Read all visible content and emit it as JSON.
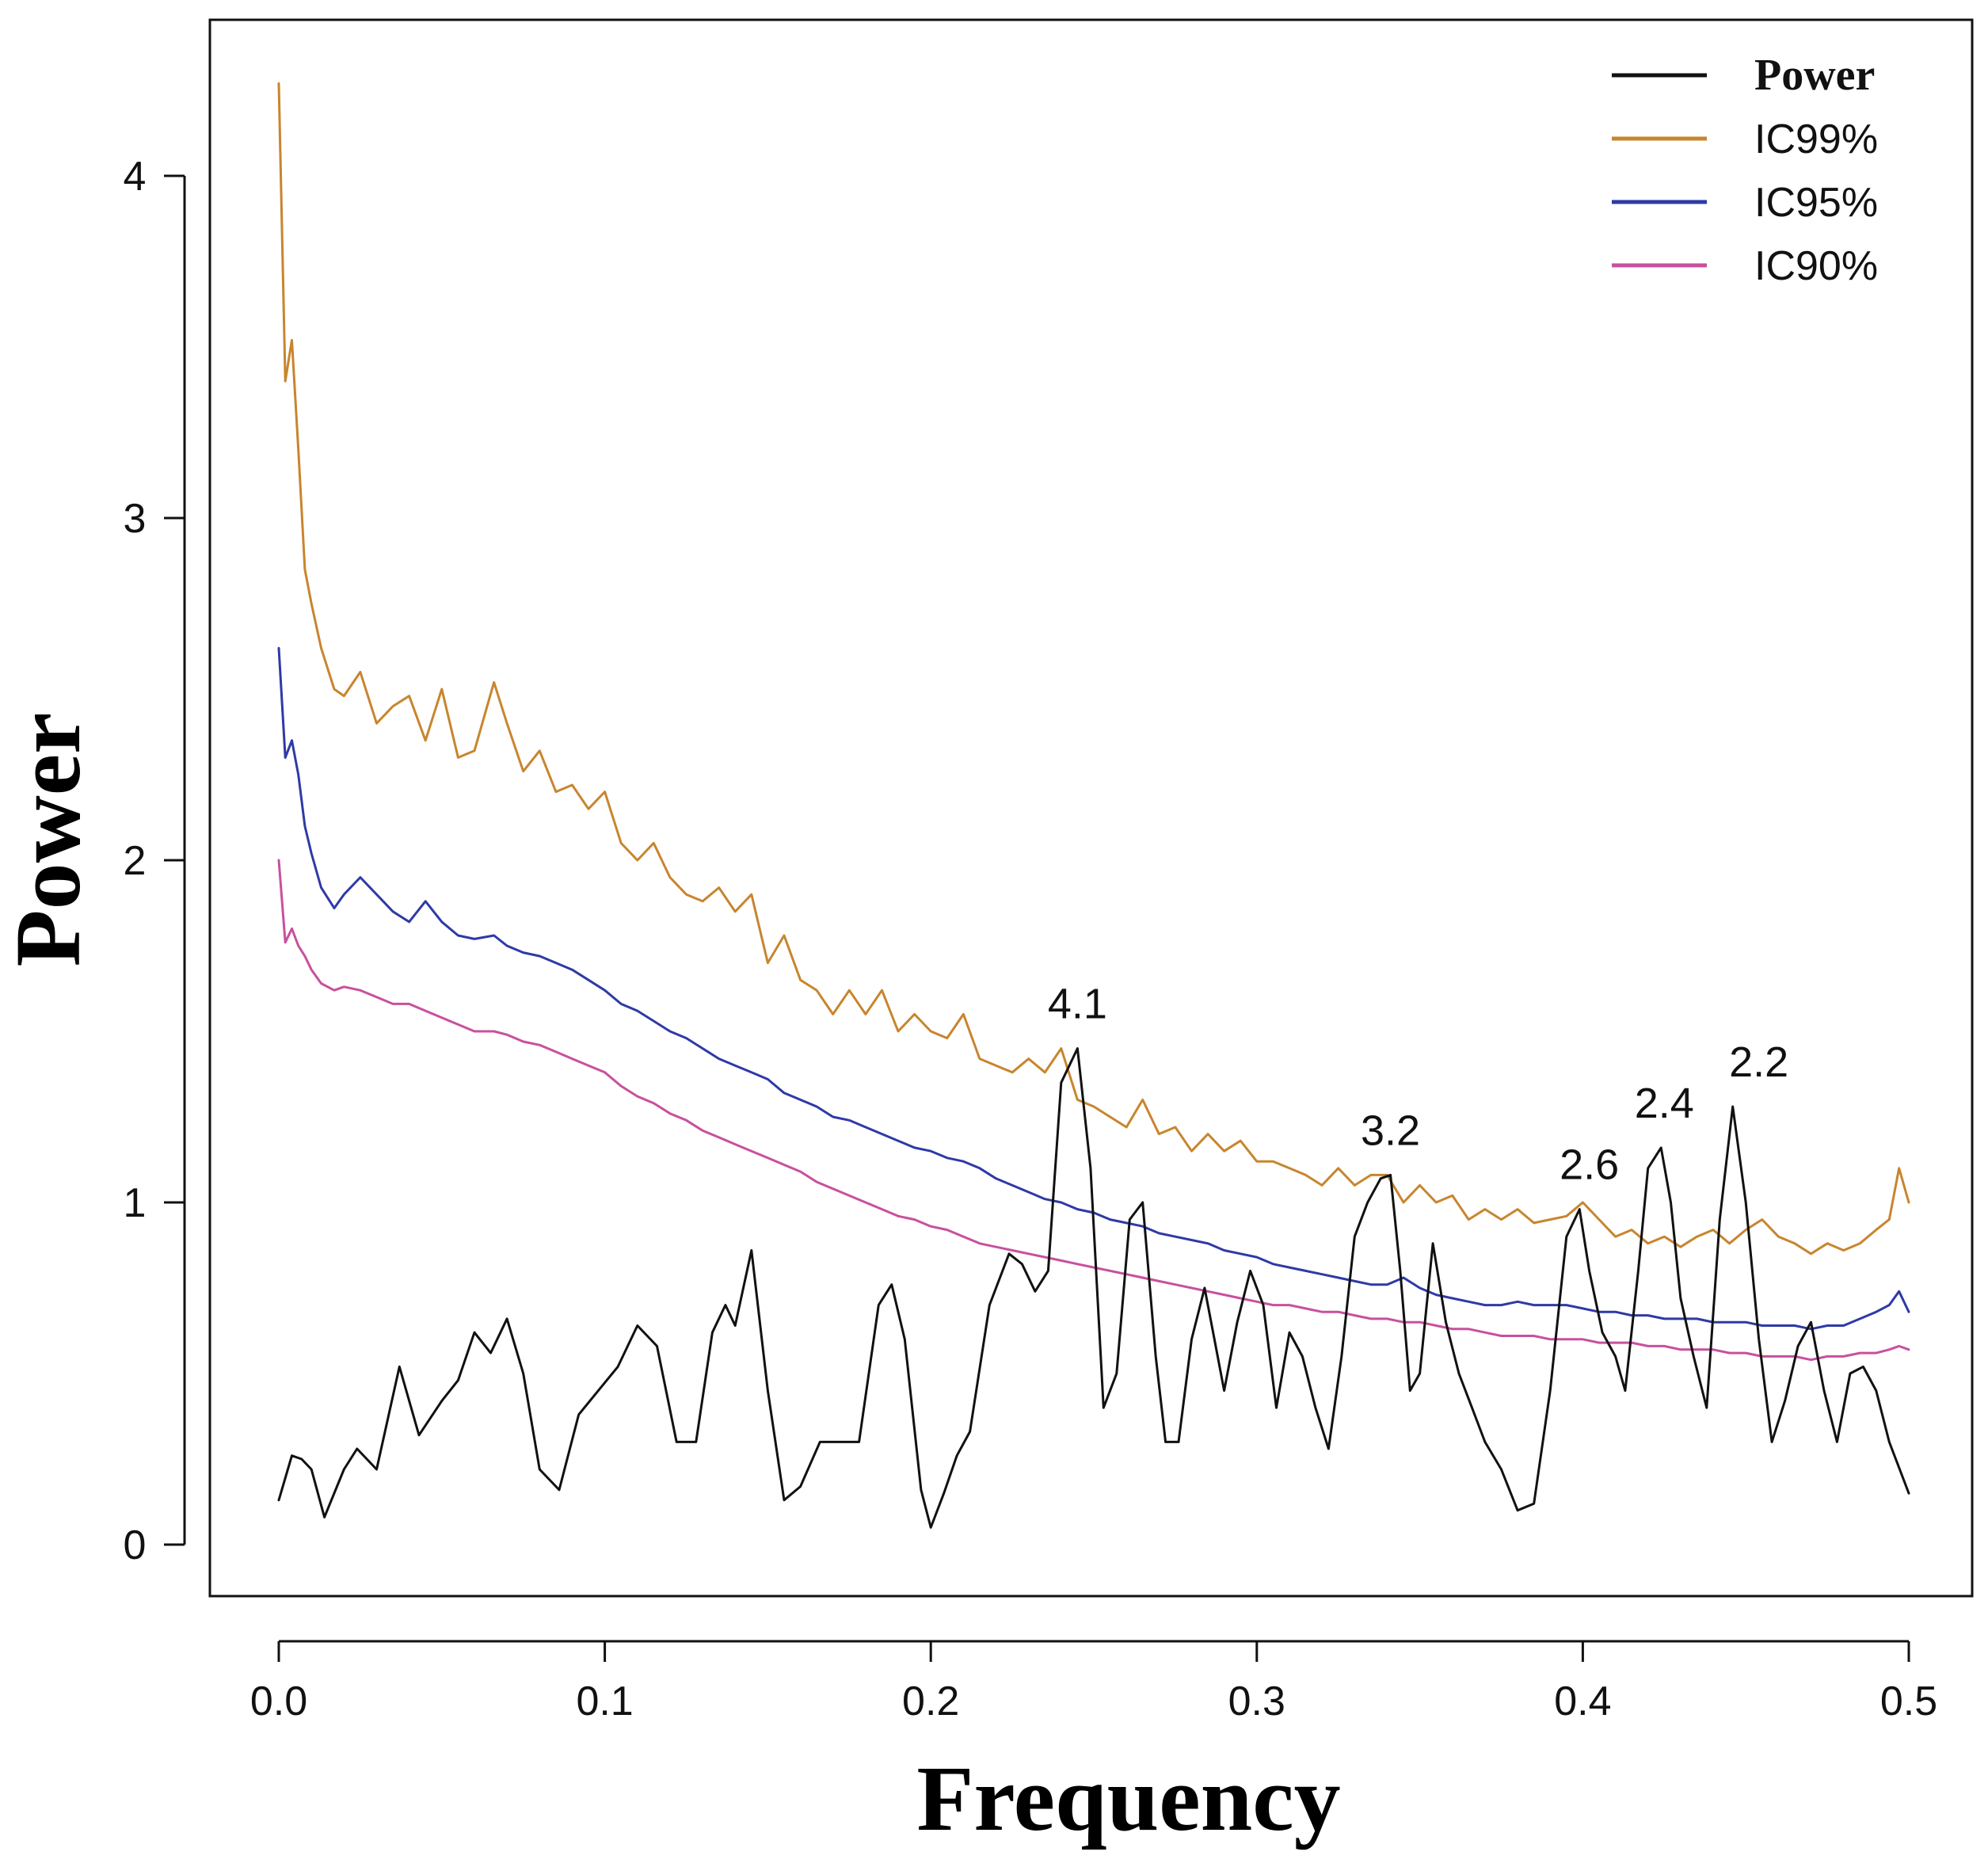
{
  "chart_data": {
    "type": "line",
    "title": "",
    "xlabel": "Frequency",
    "ylabel": "Power",
    "xlim": [
      0.0,
      0.5
    ],
    "ylim": [
      0,
      4.3
    ],
    "x_ticks": [
      "0.0",
      "0.1",
      "0.2",
      "0.3",
      "0.4",
      "0.5"
    ],
    "y_ticks": [
      "0",
      "1",
      "2",
      "3",
      "4"
    ],
    "grid": false,
    "legend_position": "top-right",
    "series": [
      {
        "name": "Power",
        "color": "#111111",
        "x": [
          0.0,
          0.004,
          0.007,
          0.01,
          0.014,
          0.02,
          0.024,
          0.03,
          0.037,
          0.043,
          0.05,
          0.055,
          0.06,
          0.065,
          0.07,
          0.075,
          0.08,
          0.086,
          0.092,
          0.098,
          0.104,
          0.11,
          0.116,
          0.122,
          0.128,
          0.133,
          0.137,
          0.14,
          0.145,
          0.15,
          0.155,
          0.16,
          0.166,
          0.172,
          0.178,
          0.184,
          0.188,
          0.192,
          0.197,
          0.2,
          0.204,
          0.208,
          0.212,
          0.218,
          0.224,
          0.228,
          0.232,
          0.236,
          0.24,
          0.245,
          0.249,
          0.253,
          0.257,
          0.261,
          0.265,
          0.269,
          0.272,
          0.276,
          0.28,
          0.284,
          0.287,
          0.29,
          0.294,
          0.298,
          0.302,
          0.306,
          0.31,
          0.314,
          0.318,
          0.322,
          0.326,
          0.33,
          0.334,
          0.338,
          0.341,
          0.344,
          0.347,
          0.35,
          0.354,
          0.358,
          0.362,
          0.366,
          0.37,
          0.375,
          0.38,
          0.385,
          0.39,
          0.395,
          0.399,
          0.402,
          0.406,
          0.41,
          0.413,
          0.417,
          0.42,
          0.424,
          0.427,
          0.43,
          0.434,
          0.438,
          0.442,
          0.446,
          0.45,
          0.454,
          0.458,
          0.462,
          0.466,
          0.47,
          0.474,
          0.478,
          0.482,
          0.486,
          0.49,
          0.494,
          0.498,
          0.5
        ],
        "values": [
          0.13,
          0.26,
          0.25,
          0.22,
          0.08,
          0.22,
          0.28,
          0.22,
          0.52,
          0.32,
          0.42,
          0.48,
          0.62,
          0.56,
          0.66,
          0.5,
          0.22,
          0.16,
          0.38,
          0.45,
          0.52,
          0.64,
          0.58,
          0.3,
          0.3,
          0.62,
          0.7,
          0.64,
          0.86,
          0.45,
          0.13,
          0.17,
          0.3,
          0.3,
          0.3,
          0.7,
          0.76,
          0.6,
          0.16,
          0.05,
          0.15,
          0.26,
          0.33,
          0.7,
          0.85,
          0.82,
          0.74,
          0.8,
          1.35,
          1.45,
          1.1,
          0.4,
          0.5,
          0.95,
          1.0,
          0.55,
          0.3,
          0.3,
          0.6,
          0.75,
          0.6,
          0.45,
          0.65,
          0.8,
          0.7,
          0.4,
          0.62,
          0.55,
          0.4,
          0.28,
          0.55,
          0.9,
          1.0,
          1.07,
          1.08,
          0.8,
          0.45,
          0.5,
          0.88,
          0.65,
          0.5,
          0.4,
          0.3,
          0.22,
          0.1,
          0.12,
          0.45,
          0.9,
          0.98,
          0.8,
          0.62,
          0.55,
          0.45,
          0.8,
          1.1,
          1.16,
          1.0,
          0.72,
          0.55,
          0.4,
          0.95,
          1.28,
          1.0,
          0.6,
          0.3,
          0.42,
          0.58,
          0.65,
          0.45,
          0.3,
          0.5,
          0.52,
          0.45,
          0.3,
          0.2,
          0.15
        ]
      },
      {
        "name": "IC99%",
        "color": "#C8852E",
        "x": [
          0.0,
          0.002,
          0.004,
          0.006,
          0.008,
          0.01,
          0.013,
          0.017,
          0.02,
          0.025,
          0.03,
          0.035,
          0.04,
          0.045,
          0.05,
          0.055,
          0.06,
          0.066,
          0.07,
          0.075,
          0.08,
          0.085,
          0.09,
          0.095,
          0.1,
          0.105,
          0.11,
          0.115,
          0.12,
          0.125,
          0.13,
          0.135,
          0.14,
          0.145,
          0.15,
          0.155,
          0.16,
          0.165,
          0.17,
          0.175,
          0.18,
          0.185,
          0.19,
          0.195,
          0.2,
          0.205,
          0.21,
          0.215,
          0.22,
          0.225,
          0.23,
          0.235,
          0.24,
          0.245,
          0.25,
          0.255,
          0.26,
          0.265,
          0.27,
          0.275,
          0.28,
          0.285,
          0.29,
          0.295,
          0.3,
          0.305,
          0.31,
          0.315,
          0.32,
          0.325,
          0.33,
          0.335,
          0.34,
          0.345,
          0.35,
          0.355,
          0.36,
          0.365,
          0.37,
          0.375,
          0.38,
          0.385,
          0.39,
          0.395,
          0.4,
          0.405,
          0.41,
          0.415,
          0.42,
          0.425,
          0.43,
          0.435,
          0.44,
          0.445,
          0.45,
          0.455,
          0.46,
          0.465,
          0.47,
          0.475,
          0.48,
          0.485,
          0.49,
          0.494,
          0.497,
          0.5
        ],
        "values": [
          4.27,
          3.4,
          3.52,
          3.2,
          2.85,
          2.75,
          2.62,
          2.5,
          2.48,
          2.55,
          2.4,
          2.45,
          2.48,
          2.35,
          2.5,
          2.3,
          2.32,
          2.52,
          2.4,
          2.26,
          2.32,
          2.2,
          2.22,
          2.15,
          2.2,
          2.05,
          2.0,
          2.05,
          1.95,
          1.9,
          1.88,
          1.92,
          1.85,
          1.9,
          1.7,
          1.78,
          1.65,
          1.62,
          1.55,
          1.62,
          1.55,
          1.62,
          1.5,
          1.55,
          1.5,
          1.48,
          1.55,
          1.42,
          1.4,
          1.38,
          1.42,
          1.38,
          1.45,
          1.3,
          1.28,
          1.25,
          1.22,
          1.3,
          1.2,
          1.22,
          1.15,
          1.2,
          1.15,
          1.18,
          1.12,
          1.12,
          1.1,
          1.08,
          1.05,
          1.1,
          1.05,
          1.08,
          1.08,
          1.0,
          1.05,
          1.0,
          1.02,
          0.95,
          0.98,
          0.95,
          0.98,
          0.94,
          0.95,
          0.96,
          1.0,
          0.95,
          0.9,
          0.92,
          0.88,
          0.9,
          0.87,
          0.9,
          0.92,
          0.88,
          0.92,
          0.95,
          0.9,
          0.88,
          0.85,
          0.88,
          0.86,
          0.88,
          0.92,
          0.95,
          1.1,
          1.0
        ]
      },
      {
        "name": "IC95%",
        "color": "#2E3AA6",
        "x": [
          0.0,
          0.002,
          0.004,
          0.006,
          0.008,
          0.01,
          0.013,
          0.017,
          0.02,
          0.025,
          0.03,
          0.035,
          0.04,
          0.045,
          0.05,
          0.055,
          0.06,
          0.066,
          0.07,
          0.075,
          0.08,
          0.085,
          0.09,
          0.095,
          0.1,
          0.105,
          0.11,
          0.115,
          0.12,
          0.125,
          0.13,
          0.135,
          0.14,
          0.145,
          0.15,
          0.155,
          0.16,
          0.165,
          0.17,
          0.175,
          0.18,
          0.185,
          0.19,
          0.195,
          0.2,
          0.205,
          0.21,
          0.215,
          0.22,
          0.225,
          0.23,
          0.235,
          0.24,
          0.245,
          0.25,
          0.255,
          0.26,
          0.265,
          0.27,
          0.275,
          0.28,
          0.285,
          0.29,
          0.295,
          0.3,
          0.305,
          0.31,
          0.315,
          0.32,
          0.325,
          0.33,
          0.335,
          0.34,
          0.345,
          0.35,
          0.355,
          0.36,
          0.365,
          0.37,
          0.375,
          0.38,
          0.385,
          0.39,
          0.395,
          0.4,
          0.405,
          0.41,
          0.415,
          0.42,
          0.425,
          0.43,
          0.435,
          0.44,
          0.445,
          0.45,
          0.455,
          0.46,
          0.465,
          0.47,
          0.475,
          0.48,
          0.485,
          0.49,
          0.494,
          0.497,
          0.5
        ],
        "values": [
          2.62,
          2.3,
          2.35,
          2.25,
          2.1,
          2.02,
          1.92,
          1.86,
          1.9,
          1.95,
          1.9,
          1.85,
          1.82,
          1.88,
          1.82,
          1.78,
          1.77,
          1.78,
          1.75,
          1.73,
          1.72,
          1.7,
          1.68,
          1.65,
          1.62,
          1.58,
          1.56,
          1.53,
          1.5,
          1.48,
          1.45,
          1.42,
          1.4,
          1.38,
          1.36,
          1.32,
          1.3,
          1.28,
          1.25,
          1.24,
          1.22,
          1.2,
          1.18,
          1.16,
          1.15,
          1.13,
          1.12,
          1.1,
          1.07,
          1.05,
          1.03,
          1.01,
          1.0,
          0.98,
          0.97,
          0.95,
          0.94,
          0.93,
          0.91,
          0.9,
          0.89,
          0.88,
          0.86,
          0.85,
          0.84,
          0.82,
          0.81,
          0.8,
          0.79,
          0.78,
          0.77,
          0.76,
          0.76,
          0.78,
          0.75,
          0.73,
          0.72,
          0.71,
          0.7,
          0.7,
          0.71,
          0.7,
          0.7,
          0.7,
          0.69,
          0.68,
          0.68,
          0.67,
          0.67,
          0.66,
          0.66,
          0.66,
          0.65,
          0.65,
          0.65,
          0.64,
          0.64,
          0.64,
          0.63,
          0.64,
          0.64,
          0.66,
          0.68,
          0.7,
          0.74,
          0.68
        ]
      },
      {
        "name": "IC90%",
        "color": "#C8509E",
        "x": [
          0.0,
          0.002,
          0.004,
          0.006,
          0.008,
          0.01,
          0.013,
          0.017,
          0.02,
          0.025,
          0.03,
          0.035,
          0.04,
          0.045,
          0.05,
          0.055,
          0.06,
          0.066,
          0.07,
          0.075,
          0.08,
          0.085,
          0.09,
          0.095,
          0.1,
          0.105,
          0.11,
          0.115,
          0.12,
          0.125,
          0.13,
          0.135,
          0.14,
          0.145,
          0.15,
          0.155,
          0.16,
          0.165,
          0.17,
          0.175,
          0.18,
          0.185,
          0.19,
          0.195,
          0.2,
          0.205,
          0.21,
          0.215,
          0.22,
          0.225,
          0.23,
          0.235,
          0.24,
          0.245,
          0.25,
          0.255,
          0.26,
          0.265,
          0.27,
          0.275,
          0.28,
          0.285,
          0.29,
          0.295,
          0.3,
          0.305,
          0.31,
          0.315,
          0.32,
          0.325,
          0.33,
          0.335,
          0.34,
          0.345,
          0.35,
          0.355,
          0.36,
          0.365,
          0.37,
          0.375,
          0.38,
          0.385,
          0.39,
          0.395,
          0.4,
          0.405,
          0.41,
          0.415,
          0.42,
          0.425,
          0.43,
          0.435,
          0.44,
          0.445,
          0.45,
          0.455,
          0.46,
          0.465,
          0.47,
          0.475,
          0.48,
          0.485,
          0.49,
          0.494,
          0.497,
          0.5
        ],
        "values": [
          2.0,
          1.76,
          1.8,
          1.75,
          1.72,
          1.68,
          1.64,
          1.62,
          1.63,
          1.62,
          1.6,
          1.58,
          1.58,
          1.56,
          1.54,
          1.52,
          1.5,
          1.5,
          1.49,
          1.47,
          1.46,
          1.44,
          1.42,
          1.4,
          1.38,
          1.34,
          1.31,
          1.29,
          1.26,
          1.24,
          1.21,
          1.19,
          1.17,
          1.15,
          1.13,
          1.11,
          1.09,
          1.06,
          1.04,
          1.02,
          1.0,
          0.98,
          0.96,
          0.95,
          0.93,
          0.92,
          0.9,
          0.88,
          0.87,
          0.86,
          0.85,
          0.84,
          0.83,
          0.82,
          0.81,
          0.8,
          0.79,
          0.78,
          0.77,
          0.76,
          0.75,
          0.74,
          0.73,
          0.72,
          0.71,
          0.7,
          0.7,
          0.69,
          0.68,
          0.68,
          0.67,
          0.66,
          0.66,
          0.65,
          0.65,
          0.64,
          0.63,
          0.63,
          0.62,
          0.61,
          0.61,
          0.61,
          0.6,
          0.6,
          0.6,
          0.59,
          0.59,
          0.59,
          0.58,
          0.58,
          0.57,
          0.57,
          0.57,
          0.56,
          0.56,
          0.55,
          0.55,
          0.55,
          0.54,
          0.55,
          0.55,
          0.56,
          0.56,
          0.57,
          0.58,
          0.57
        ]
      }
    ],
    "annotations": [
      {
        "text": "4.1",
        "x": 0.245,
        "y": 1.45
      },
      {
        "text": "3.2",
        "x": 0.341,
        "y": 1.08
      },
      {
        "text": "2.6",
        "x": 0.402,
        "y": 0.98
      },
      {
        "text": "2.4",
        "x": 0.425,
        "y": 1.16
      },
      {
        "text": "2.2",
        "x": 0.454,
        "y": 1.28
      }
    ]
  }
}
